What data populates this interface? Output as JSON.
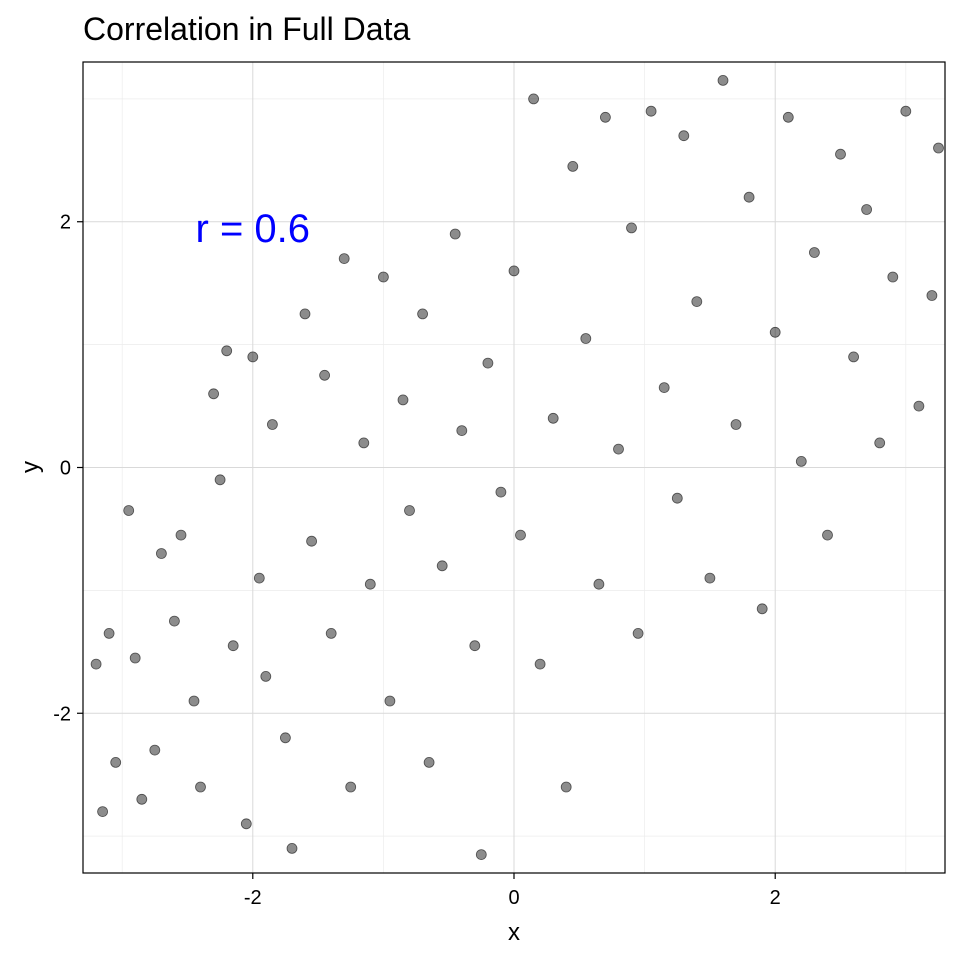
{
  "chart_data": {
    "type": "scatter",
    "title": "Correlation in Full Data",
    "xlabel": "x",
    "ylabel": "y",
    "xlim": [
      -3.3,
      3.3
    ],
    "ylim": [
      -3.3,
      3.3
    ],
    "x_ticks": [
      -2,
      0,
      2
    ],
    "y_ticks": [
      -2,
      0,
      2
    ],
    "x_tick_labels": [
      "-2",
      "0",
      "2"
    ],
    "y_tick_labels": [
      "-2",
      "0",
      "2"
    ],
    "grid": true,
    "point_color": "#000000",
    "point_opacity": 0.45,
    "annotation": {
      "text": "r = 0.6",
      "x": -2.0,
      "y": 1.95,
      "color": "#0000ff"
    },
    "correlation": 0.6,
    "points": [
      [
        -3.2,
        -1.6
      ],
      [
        -3.15,
        -2.8
      ],
      [
        -3.1,
        -1.35
      ],
      [
        -3.05,
        -2.4
      ],
      [
        -2.95,
        -0.35
      ],
      [
        -2.9,
        -1.55
      ],
      [
        -2.85,
        -2.7
      ],
      [
        -2.75,
        -2.3
      ],
      [
        -2.7,
        -0.7
      ],
      [
        -2.6,
        -1.25
      ],
      [
        -2.55,
        -0.55
      ],
      [
        -2.45,
        -1.9
      ],
      [
        -2.4,
        -2.6
      ],
      [
        -2.3,
        0.6
      ],
      [
        -2.25,
        -0.1
      ],
      [
        -2.2,
        0.95
      ],
      [
        -2.15,
        -1.45
      ],
      [
        -2.05,
        -2.9
      ],
      [
        -2.0,
        0.9
      ],
      [
        -1.95,
        -0.9
      ],
      [
        -1.9,
        -1.7
      ],
      [
        -1.85,
        0.35
      ],
      [
        -1.75,
        -2.2
      ],
      [
        -1.7,
        -3.1
      ],
      [
        -1.6,
        1.25
      ],
      [
        -1.55,
        -0.6
      ],
      [
        -1.45,
        0.75
      ],
      [
        -1.4,
        -1.35
      ],
      [
        -1.3,
        1.7
      ],
      [
        -1.25,
        -2.6
      ],
      [
        -1.15,
        0.2
      ],
      [
        -1.1,
        -0.95
      ],
      [
        -1.0,
        1.55
      ],
      [
        -0.95,
        -1.9
      ],
      [
        -0.85,
        0.55
      ],
      [
        -0.8,
        -0.35
      ],
      [
        -0.7,
        1.25
      ],
      [
        -0.65,
        -2.4
      ],
      [
        -0.55,
        -0.8
      ],
      [
        -0.45,
        1.9
      ],
      [
        -0.4,
        0.3
      ],
      [
        -0.3,
        -1.45
      ],
      [
        -0.25,
        -3.15
      ],
      [
        -0.2,
        0.85
      ],
      [
        -0.1,
        -0.2
      ],
      [
        0.0,
        1.6
      ],
      [
        0.05,
        -0.55
      ],
      [
        0.15,
        3.0
      ],
      [
        0.2,
        -1.6
      ],
      [
        0.3,
        0.4
      ],
      [
        0.4,
        -2.6
      ],
      [
        0.45,
        2.45
      ],
      [
        0.55,
        1.05
      ],
      [
        0.65,
        -0.95
      ],
      [
        0.7,
        2.85
      ],
      [
        0.8,
        0.15
      ],
      [
        0.9,
        1.95
      ],
      [
        0.95,
        -1.35
      ],
      [
        1.05,
        2.9
      ],
      [
        1.15,
        0.65
      ],
      [
        1.25,
        -0.25
      ],
      [
        1.3,
        2.7
      ],
      [
        1.4,
        1.35
      ],
      [
        1.5,
        -0.9
      ],
      [
        1.6,
        3.15
      ],
      [
        1.7,
        0.35
      ],
      [
        1.8,
        2.2
      ],
      [
        1.9,
        -1.15
      ],
      [
        2.0,
        1.1
      ],
      [
        2.1,
        2.85
      ],
      [
        2.2,
        0.05
      ],
      [
        2.3,
        1.75
      ],
      [
        2.4,
        -0.55
      ],
      [
        2.5,
        2.55
      ],
      [
        2.6,
        0.9
      ],
      [
        2.7,
        2.1
      ],
      [
        2.8,
        0.2
      ],
      [
        2.9,
        1.55
      ],
      [
        3.0,
        2.9
      ],
      [
        3.1,
        0.5
      ],
      [
        3.2,
        1.4
      ],
      [
        3.25,
        2.6
      ]
    ]
  }
}
